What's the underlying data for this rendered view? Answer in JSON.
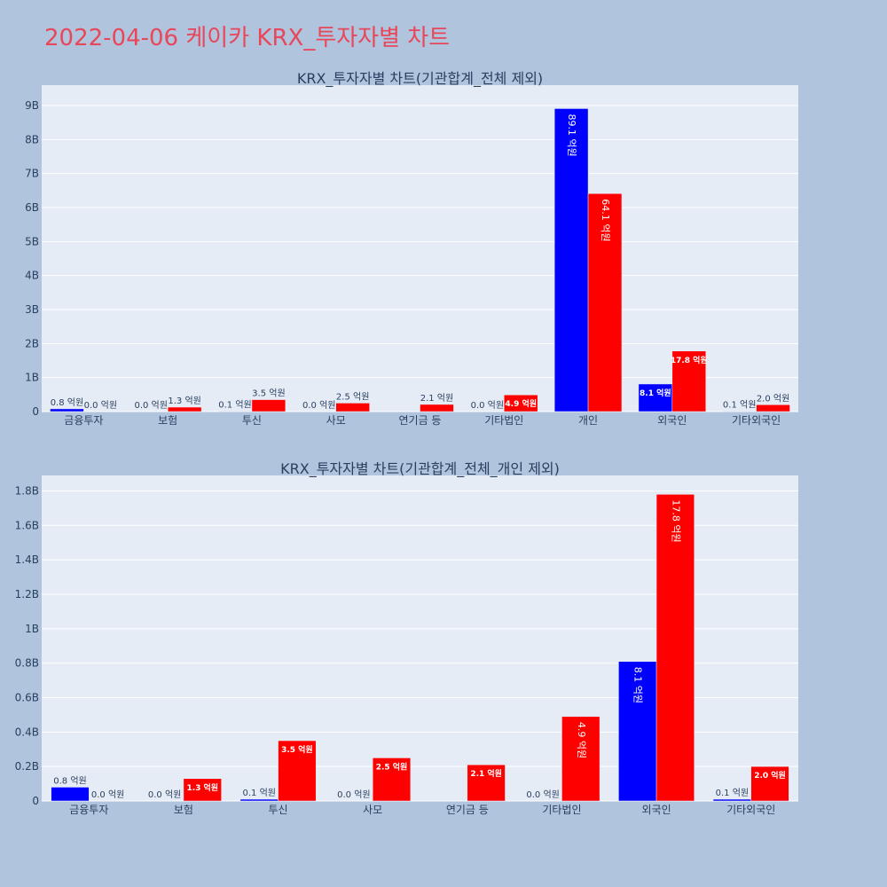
{
  "title": "2022-04-06 케이카 KRX_투자자별 차트",
  "colors": {
    "background": "#b0c4de",
    "plot_bg": "#e5ecf6",
    "title": "#e8475a",
    "series_1": "#0000ff",
    "series_2": "#ff0000"
  },
  "chart_data": [
    {
      "type": "bar",
      "title": "KRX_투자자별 차트(기관합계_전체 제외)",
      "categories": [
        "금융투자",
        "보험",
        "투신",
        "사모",
        "연기금 등",
        "기타법인",
        "개인",
        "외국인",
        "기타외국인"
      ],
      "yticks": [
        "0",
        "1B",
        "2B",
        "3B",
        "4B",
        "5B",
        "6B",
        "7B",
        "8B",
        "9B"
      ],
      "ylim": [
        0,
        9600000000
      ],
      "series": [
        {
          "color": "#0000ff",
          "values": [
            80000000,
            0,
            10000000,
            0,
            0,
            0,
            8910000000,
            810000000,
            10000000
          ],
          "labels": [
            "0.8 억원",
            "0.0 억원",
            "0.1 억원",
            "0.0 억원",
            "",
            "0.0 억원",
            "89.1 억원",
            "8.1 억원",
            "0.1 억원"
          ]
        },
        {
          "color": "#ff0000",
          "values": [
            0,
            130000000,
            350000000,
            250000000,
            210000000,
            490000000,
            6410000000,
            1780000000,
            200000000
          ],
          "labels": [
            "0.0 억원",
            "1.3 억원",
            "3.5 억원",
            "2.5 억원",
            "2.1 억원",
            "4.9 억원",
            "64.1 억원",
            "17.8 억원",
            "2.0 억원"
          ]
        }
      ]
    },
    {
      "type": "bar",
      "title": "KRX_투자자별 차트(기관합계_전체_개인 제외)",
      "categories": [
        "금융투자",
        "보험",
        "투신",
        "사모",
        "연기금 등",
        "기타법인",
        "외국인",
        "기타외국인"
      ],
      "yticks": [
        "0",
        "0.2B",
        "0.4B",
        "0.6B",
        "0.8B",
        "1B",
        "1.2B",
        "1.4B",
        "1.6B",
        "1.8B"
      ],
      "ylim": [
        0,
        1890000000
      ],
      "series": [
        {
          "color": "#0000ff",
          "values": [
            80000000,
            0,
            10000000,
            0,
            0,
            0,
            810000000,
            10000000
          ],
          "labels": [
            "0.8 억원",
            "0.0 억원",
            "0.1 억원",
            "0.0 억원",
            "",
            "0.0 억원",
            "8.1 억원",
            "0.1 억원"
          ]
        },
        {
          "color": "#ff0000",
          "values": [
            0,
            130000000,
            350000000,
            250000000,
            210000000,
            490000000,
            1780000000,
            200000000
          ],
          "labels": [
            "0.0 억원",
            "1.3 억원",
            "3.5 억원",
            "2.5 억원",
            "2.1 억원",
            "4.9 억원",
            "17.8 억원",
            "2.0 억원"
          ]
        }
      ]
    }
  ]
}
